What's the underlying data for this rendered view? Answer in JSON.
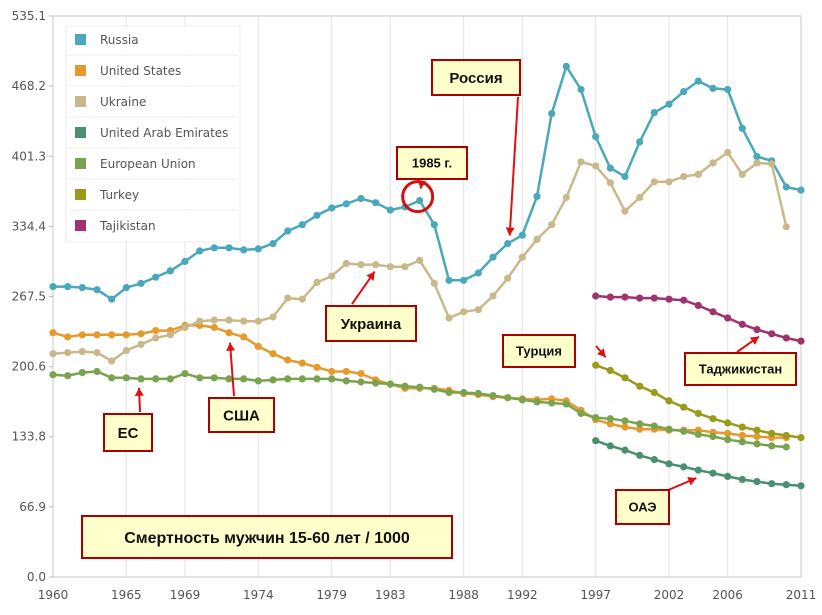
{
  "chart_data": {
    "type": "line",
    "title": "Смертность мужчин 15-60 лет / 1000",
    "xlabel": "",
    "ylabel": "",
    "xlim": [
      1960,
      2011
    ],
    "ylim": [
      0,
      535.1
    ],
    "x_ticks": [
      "1960",
      "1965",
      "1969",
      "1974",
      "1979",
      "1983",
      "1988",
      "1992",
      "1997",
      "2002",
      "2006",
      "2011"
    ],
    "y_ticks": [
      "0.0",
      "66.9",
      "133.8",
      "200.6",
      "267.5",
      "334.4",
      "401.3",
      "468.2",
      "535.1"
    ],
    "grid": "vertical",
    "legend_position": "top-left",
    "series": [
      {
        "name": "Russia",
        "color": "#4aa8bd",
        "points": [
          [
            1960,
            277
          ],
          [
            1961,
            277
          ],
          [
            1962,
            276
          ],
          [
            1963,
            274
          ],
          [
            1964,
            265
          ],
          [
            1965,
            276
          ],
          [
            1966,
            280
          ],
          [
            1967,
            286
          ],
          [
            1968,
            292
          ],
          [
            1969,
            301
          ],
          [
            1970,
            311
          ],
          [
            1971,
            314
          ],
          [
            1972,
            314
          ],
          [
            1973,
            312
          ],
          [
            1974,
            313
          ],
          [
            1975,
            318
          ],
          [
            1976,
            330
          ],
          [
            1977,
            336
          ],
          [
            1978,
            345
          ],
          [
            1979,
            352
          ],
          [
            1980,
            356
          ],
          [
            1981,
            361
          ],
          [
            1982,
            357
          ],
          [
            1983,
            350
          ],
          [
            1984,
            353
          ],
          [
            1985,
            359
          ],
          [
            1986,
            336
          ],
          [
            1987,
            283
          ],
          [
            1988,
            283
          ],
          [
            1989,
            290
          ],
          [
            1990,
            305
          ],
          [
            1991,
            318
          ],
          [
            1992,
            326
          ],
          [
            1993,
            363
          ],
          [
            1994,
            442
          ],
          [
            1995,
            487
          ],
          [
            1996,
            465
          ],
          [
            1997,
            420
          ],
          [
            1998,
            390
          ],
          [
            1999,
            382
          ],
          [
            2000,
            415
          ],
          [
            2001,
            443
          ],
          [
            2002,
            451
          ],
          [
            2003,
            463
          ],
          [
            2004,
            473
          ],
          [
            2005,
            466
          ],
          [
            2006,
            465
          ],
          [
            2007,
            428
          ],
          [
            2008,
            401
          ],
          [
            2009,
            397
          ],
          [
            2010,
            372
          ],
          [
            2011,
            369
          ]
        ]
      },
      {
        "name": "United States",
        "color": "#e69a2e",
        "points": [
          [
            1960,
            233
          ],
          [
            1961,
            229
          ],
          [
            1962,
            231
          ],
          [
            1963,
            231
          ],
          [
            1964,
            231
          ],
          [
            1965,
            231
          ],
          [
            1966,
            232
          ],
          [
            1967,
            235
          ],
          [
            1968,
            235
          ],
          [
            1969,
            240
          ],
          [
            1970,
            240
          ],
          [
            1971,
            238
          ],
          [
            1972,
            233
          ],
          [
            1973,
            229
          ],
          [
            1974,
            220
          ],
          [
            1975,
            213
          ],
          [
            1976,
            207
          ],
          [
            1977,
            204
          ],
          [
            1978,
            200
          ],
          [
            1979,
            196
          ],
          [
            1980,
            196
          ],
          [
            1981,
            194
          ],
          [
            1982,
            188
          ],
          [
            1983,
            184
          ],
          [
            1984,
            180
          ],
          [
            1985,
            180
          ],
          [
            1986,
            180
          ],
          [
            1987,
            178
          ],
          [
            1988,
            175
          ],
          [
            1989,
            174
          ],
          [
            1990,
            172
          ],
          [
            1991,
            171
          ],
          [
            1992,
            170
          ],
          [
            1993,
            169
          ],
          [
            1994,
            170
          ],
          [
            1995,
            168
          ],
          [
            1996,
            159
          ],
          [
            1997,
            150
          ],
          [
            1998,
            146
          ],
          [
            1999,
            143
          ],
          [
            2000,
            141
          ],
          [
            2001,
            141
          ],
          [
            2002,
            140
          ],
          [
            2003,
            140
          ],
          [
            2004,
            140
          ],
          [
            2005,
            138
          ],
          [
            2006,
            137
          ],
          [
            2007,
            135
          ],
          [
            2008,
            134
          ],
          [
            2009,
            133
          ],
          [
            2010,
            133
          ]
        ]
      },
      {
        "name": "Ukraine",
        "color": "#c9b98a",
        "points": [
          [
            1960,
            213
          ],
          [
            1961,
            214
          ],
          [
            1962,
            215
          ],
          [
            1963,
            214
          ],
          [
            1964,
            206
          ],
          [
            1965,
            216
          ],
          [
            1966,
            222
          ],
          [
            1967,
            228
          ],
          [
            1968,
            231
          ],
          [
            1969,
            238
          ],
          [
            1970,
            244
          ],
          [
            1971,
            245
          ],
          [
            1972,
            245
          ],
          [
            1973,
            244
          ],
          [
            1974,
            244
          ],
          [
            1975,
            248
          ],
          [
            1976,
            266
          ],
          [
            1977,
            265
          ],
          [
            1978,
            281
          ],
          [
            1979,
            287
          ],
          [
            1980,
            299
          ],
          [
            1981,
            298
          ],
          [
            1982,
            298
          ],
          [
            1983,
            296
          ],
          [
            1984,
            296
          ],
          [
            1985,
            302
          ],
          [
            1986,
            280
          ],
          [
            1987,
            247
          ],
          [
            1988,
            253
          ],
          [
            1989,
            255
          ],
          [
            1990,
            268
          ],
          [
            1991,
            285
          ],
          [
            1992,
            305
          ],
          [
            1993,
            322
          ],
          [
            1994,
            336
          ],
          [
            1995,
            362
          ],
          [
            1996,
            396
          ],
          [
            1997,
            392
          ],
          [
            1998,
            376
          ],
          [
            1999,
            349
          ],
          [
            2000,
            362
          ],
          [
            2001,
            377
          ],
          [
            2002,
            377
          ],
          [
            2003,
            382
          ],
          [
            2004,
            384
          ],
          [
            2005,
            395
          ],
          [
            2006,
            405
          ],
          [
            2007,
            384
          ],
          [
            2008,
            395
          ],
          [
            2009,
            394
          ],
          [
            2010,
            334
          ]
        ]
      },
      {
        "name": "United Arab Emirates",
        "color": "#4a9070",
        "points": [
          [
            1997,
            130
          ],
          [
            1998,
            125
          ],
          [
            1999,
            121
          ],
          [
            2000,
            116
          ],
          [
            2001,
            112
          ],
          [
            2002,
            108
          ],
          [
            2003,
            105
          ],
          [
            2004,
            102
          ],
          [
            2005,
            99
          ],
          [
            2006,
            96
          ],
          [
            2007,
            93
          ],
          [
            2008,
            91
          ],
          [
            2009,
            89
          ],
          [
            2010,
            88
          ],
          [
            2011,
            87
          ]
        ]
      },
      {
        "name": "European Union",
        "color": "#7aa350",
        "points": [
          [
            1960,
            193
          ],
          [
            1961,
            192
          ],
          [
            1962,
            195
          ],
          [
            1963,
            196
          ],
          [
            1964,
            190
          ],
          [
            1965,
            190
          ],
          [
            1966,
            189
          ],
          [
            1967,
            189
          ],
          [
            1968,
            189
          ],
          [
            1969,
            194
          ],
          [
            1970,
            190
          ],
          [
            1971,
            190
          ],
          [
            1972,
            189
          ],
          [
            1973,
            189
          ],
          [
            1974,
            187
          ],
          [
            1975,
            188
          ],
          [
            1976,
            189
          ],
          [
            1977,
            189
          ],
          [
            1978,
            189
          ],
          [
            1979,
            189
          ],
          [
            1980,
            187
          ],
          [
            1981,
            186
          ],
          [
            1982,
            185
          ],
          [
            1983,
            184
          ],
          [
            1984,
            182
          ],
          [
            1985,
            181
          ],
          [
            1986,
            179
          ],
          [
            1987,
            176
          ],
          [
            1988,
            176
          ],
          [
            1989,
            175
          ],
          [
            1990,
            173
          ],
          [
            1991,
            171
          ],
          [
            1992,
            169
          ],
          [
            1993,
            167
          ],
          [
            1994,
            166
          ],
          [
            1995,
            165
          ],
          [
            1996,
            156
          ],
          [
            1997,
            152
          ],
          [
            1998,
            151
          ],
          [
            1999,
            149
          ],
          [
            2000,
            146
          ],
          [
            2001,
            144
          ],
          [
            2002,
            141
          ],
          [
            2003,
            139
          ],
          [
            2004,
            136
          ],
          [
            2005,
            134
          ],
          [
            2006,
            131
          ],
          [
            2007,
            129
          ],
          [
            2008,
            127
          ],
          [
            2009,
            125
          ],
          [
            2010,
            124
          ]
        ]
      },
      {
        "name": "Turkey",
        "color": "#9a9a1c",
        "points": [
          [
            1997,
            202
          ],
          [
            1998,
            197
          ],
          [
            1999,
            190
          ],
          [
            2000,
            182
          ],
          [
            2001,
            176
          ],
          [
            2002,
            168
          ],
          [
            2003,
            162
          ],
          [
            2004,
            156
          ],
          [
            2005,
            151
          ],
          [
            2006,
            147
          ],
          [
            2007,
            143
          ],
          [
            2008,
            140
          ],
          [
            2009,
            137
          ],
          [
            2010,
            135
          ],
          [
            2011,
            133
          ]
        ]
      },
      {
        "name": "Tajikistan",
        "color": "#a1326e",
        "points": [
          [
            1997,
            268
          ],
          [
            1998,
            267
          ],
          [
            1999,
            267
          ],
          [
            2000,
            266
          ],
          [
            2001,
            266
          ],
          [
            2002,
            265
          ],
          [
            2003,
            264
          ],
          [
            2004,
            259
          ],
          [
            2005,
            253
          ],
          [
            2006,
            247
          ],
          [
            2007,
            241
          ],
          [
            2008,
            236
          ],
          [
            2009,
            232
          ],
          [
            2010,
            228
          ],
          [
            2011,
            225
          ]
        ]
      }
    ],
    "annotations": [
      {
        "text": "Россия",
        "target_series": "Russia"
      },
      {
        "text": "1985 г.",
        "target_x": 1985
      },
      {
        "text": "Украина",
        "target_series": "Ukraine"
      },
      {
        "text": "Турция",
        "target_series": "Turkey"
      },
      {
        "text": "Таджикистан",
        "target_series": "Tajikistan"
      },
      {
        "text": "ЕС",
        "target_series": "European Union"
      },
      {
        "text": "США",
        "target_series": "United States"
      },
      {
        "text": "ОАЭ",
        "target_series": "United Arab Emirates"
      }
    ]
  }
}
